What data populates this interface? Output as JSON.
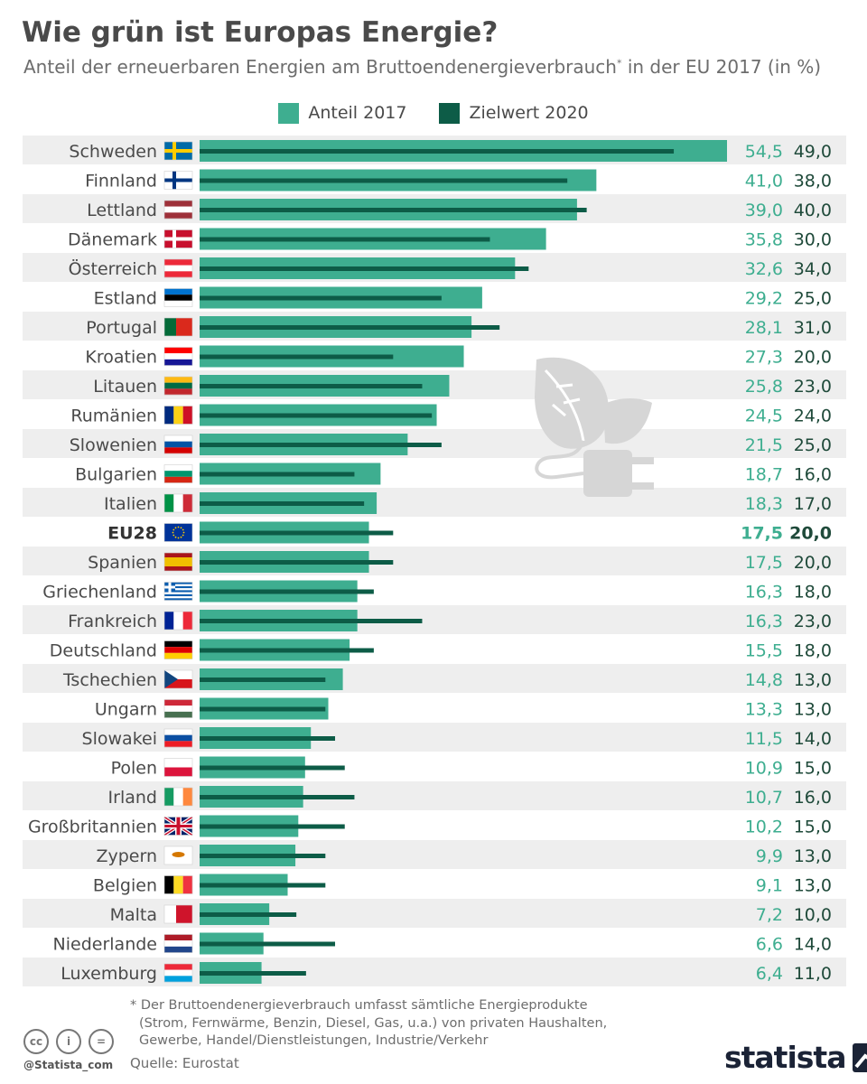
{
  "title": "Wie grün ist Europas Energie?",
  "subtitle": "Anteil der erneuerbaren Energien am Bruttoendenergieverbrauch",
  "subtitle_mark": "*",
  "subtitle_end": " in der EU 2017 (in %)",
  "legend": {
    "anteil": "Anteil 2017",
    "ziel": "Zielwert 2020"
  },
  "colors": {
    "anteil": "#3eae90",
    "ziel": "#0d5c47",
    "row_band": "#eeeeee"
  },
  "chart_data": {
    "type": "bar",
    "orientation": "horizontal",
    "title": "Wie grün ist Europas Energie?",
    "subtitle": "Anteil der erneuerbaren Energien am Bruttoendenergieverbrauch* in der EU 2017 (in %)",
    "xlim": [
      0,
      55
    ],
    "categories": [
      "Schweden",
      "Finnland",
      "Lettland",
      "Dänemark",
      "Österreich",
      "Estland",
      "Portugal",
      "Kroatien",
      "Litauen",
      "Rumänien",
      "Slowenien",
      "Bulgarien",
      "Italien",
      "EU28",
      "Spanien",
      "Griechenland",
      "Frankreich",
      "Deutschland",
      "Tschechien",
      "Ungarn",
      "Slowakei",
      "Polen",
      "Irland",
      "Großbritannien",
      "Zypern",
      "Belgien",
      "Malta",
      "Niederlande",
      "Luxemburg"
    ],
    "series": [
      {
        "name": "Anteil 2017",
        "values": [
          54.5,
          41.0,
          39.0,
          35.8,
          32.6,
          29.2,
          28.1,
          27.3,
          25.8,
          24.5,
          21.5,
          18.7,
          18.3,
          17.5,
          17.5,
          16.3,
          16.3,
          15.5,
          14.8,
          13.3,
          11.5,
          10.9,
          10.7,
          10.2,
          9.9,
          9.1,
          7.2,
          6.6,
          6.4
        ]
      },
      {
        "name": "Zielwert 2020",
        "values": [
          49.0,
          38.0,
          40.0,
          30.0,
          34.0,
          25.0,
          31.0,
          20.0,
          23.0,
          24.0,
          25.0,
          16.0,
          17.0,
          20.0,
          20.0,
          18.0,
          23.0,
          18.0,
          13.0,
          13.0,
          14.0,
          15.0,
          16.0,
          15.0,
          13.0,
          13.0,
          10.0,
          14.0,
          11.0
        ]
      }
    ],
    "labels_2017": [
      "54,5",
      "41,0",
      "39,0",
      "35,8",
      "32,6",
      "29,2",
      "28,1",
      "27,3",
      "25,8",
      "24,5",
      "21,5",
      "18,7",
      "18,3",
      "17,5",
      "17,5",
      "16,3",
      "16,3",
      "15,5",
      "14,8",
      "13,3",
      "11,5",
      "10,9",
      "10,7",
      "10,2",
      "9,9",
      "9,1",
      "7,2",
      "6,6",
      "6,4"
    ],
    "labels_2020": [
      "49,0",
      "38,0",
      "40,0",
      "30,0",
      "34,0",
      "25,0",
      "31,0",
      "20,0",
      "23,0",
      "24,0",
      "25,0",
      "16,0",
      "17,0",
      "20,0",
      "20,0",
      "18,0",
      "23,0",
      "18,0",
      "13,0",
      "13,0",
      "14,0",
      "15,0",
      "16,0",
      "15,0",
      "13,0",
      "13,0",
      "10,0",
      "14,0",
      "11,0"
    ],
    "highlight": "EU28"
  },
  "flags": {
    "Schweden": "nordic:#006aa7:#fecc00",
    "Finnland": "nordic:#ffffff:#003580",
    "Lettland": "h3:#9e3039:#ffffff:#9e3039",
    "Dänemark": "nordic:#c8102e:#ffffff",
    "Österreich": "h3:#ed2939:#ffffff:#ed2939",
    "Estland": "h3:#0072ce:#000000:#ffffff",
    "Portugal": "v2:#046a38:#da291c",
    "Kroatien": "h3:#ff0000:#ffffff:#171796",
    "Litauen": "h3:#fdb913:#006a44:#c1272d",
    "Rumänien": "v3:#002b7f:#fcd116:#ce1126",
    "Slowenien": "h3:#ffffff:#0054a6:#d50000",
    "Bulgarien": "h3:#ffffff:#00966e:#d62612",
    "Italien": "v3:#009246:#ffffff:#ce2b37",
    "EU28": "eu:#003399:#ffcc00",
    "Spanien": "h3s:#aa151b:#f1bf00:#aa151b",
    "Griechenland": "gr:#0d5eaf:#ffffff",
    "Frankreich": "v3:#002395:#ffffff:#ed2939",
    "Deutschland": "h3:#000000:#dd0000:#ffce00",
    "Tschechien": "cz:#ffffff:#d7141a:#11457e",
    "Ungarn": "h3:#ce2939:#ffffff:#477050",
    "Slowakei": "h3:#ffffff:#0b4ea2:#ee1c25",
    "Polen": "h2:#ffffff:#dc143c",
    "Irland": "v3:#169b62:#ffffff:#ff883e",
    "Großbritannien": "uk:#012169:#ffffff:#c8102e",
    "Zypern": "cy:#ffffff:#d57800",
    "Belgien": "v3:#000000:#fdda24:#ef3340",
    "Malta": "v2:#ffffff:#cf142b",
    "Niederlande": "h3:#ae1c28:#ffffff:#21468b",
    "Luxemburg": "h3:#ed2939:#ffffff:#00a1de"
  },
  "footnote": {
    "line1": "* Der Bruttoendenergieverbrauch umfasst sämtliche Energieprodukte",
    "line2": "(Strom, Fernwärme, Benzin, Diesel, Gas, u.a.) von privaten Haushalten,",
    "line3": "Gewerbe, Handel/Dienstleistungen, Industrie/Verkehr"
  },
  "source": "Quelle: Eurostat",
  "handle": "@Statista_com",
  "brand": "statista",
  "cc_icons": [
    "cc",
    "i",
    "="
  ]
}
